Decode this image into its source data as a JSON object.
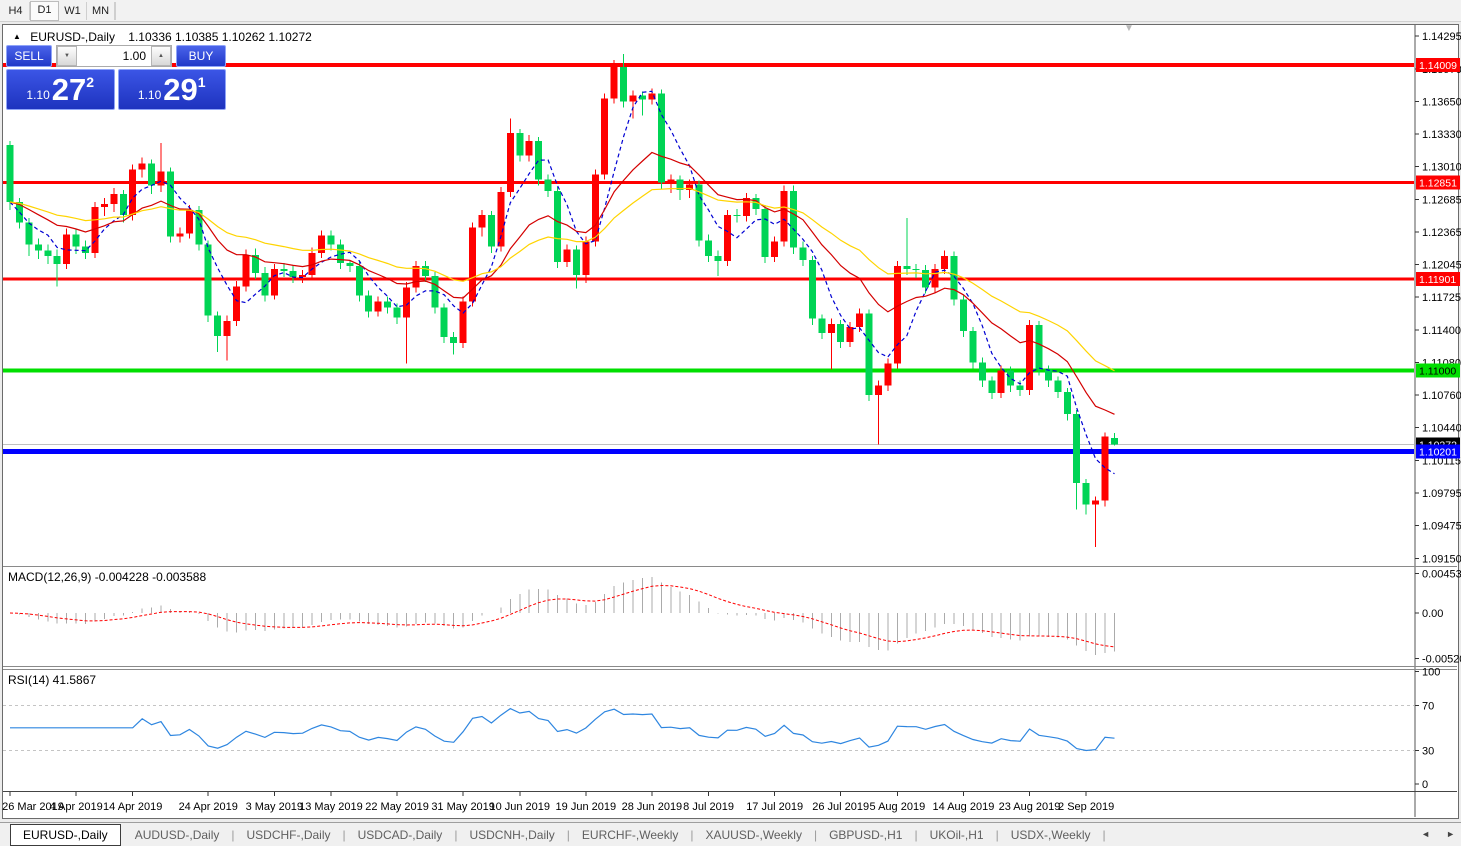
{
  "toolbar": {
    "timeframes": [
      "H4",
      "D1",
      "W1",
      "MN"
    ],
    "active_timeframe": "D1"
  },
  "chart": {
    "marker_icon": "▲",
    "symbol_label": "EURUSD-,Daily",
    "ohlc_text": "1.10336 1.10385 1.10262 1.10272",
    "shift_marker_icon": "▼"
  },
  "trade_panel": {
    "sell_label": "SELL",
    "buy_label": "BUY",
    "volume_value": "1.00",
    "decrease_icon": "▼",
    "increase_icon": "▲",
    "sell_price_small": "1.10",
    "sell_price_big": "27",
    "sell_price_sup": "2",
    "buy_price_small": "1.10",
    "buy_price_big": "29",
    "buy_price_sup": "1"
  },
  "indicator_labels": {
    "macd": "MACD(12,26,9) -0.004228 -0.003588",
    "rsi": "RSI(14) 41.5867"
  },
  "tabs": {
    "items": [
      "EURUSD-,Daily",
      "AUDUSD-,Daily",
      "USDCHF-,Daily",
      "USDCAD-,Daily",
      "USDCNH-,Daily",
      "EURCHF-,Weekly",
      "XAUUSD-,Weekly",
      "GBPUSD-,H1",
      "UKOil-,H1",
      "USDX-,Weekly"
    ],
    "active": "EURUSD-,Daily",
    "scroll_left_icon": "◄",
    "scroll_right_icon": "►"
  },
  "chart_data": {
    "type": "candlestick",
    "symbol": "EURUSD",
    "timeframe": "Daily",
    "current_bar": {
      "open": 1.10336,
      "high": 1.10385,
      "low": 1.10262,
      "close": 1.10272
    },
    "colors": {
      "bull": "#FF0000",
      "bear": "#00D455",
      "ma_fast": "#0000D2",
      "ma_mid": "#D40000",
      "ma_slow": "#FFD400",
      "macd_hist": "#ABABAB",
      "macd_signal": "#FF0000",
      "rsi_line": "#2E86E0",
      "rsi_levels": "#C4C4C4",
      "current_price_line": "#C0C0C0",
      "current_price_badge": "#000000"
    },
    "price_axis_ticks": [
      1.14295,
      1.1397,
      1.1365,
      1.1333,
      1.1301,
      1.12685,
      1.12365,
      1.12045,
      1.11725,
      1.114,
      1.1108,
      1.1076,
      1.1044,
      1.10115,
      1.09795,
      1.09475,
      1.0915
    ],
    "levels": [
      {
        "price": 1.14009,
        "color": "#FF0000",
        "width": 4,
        "badge_text": "#FFFFFF"
      },
      {
        "price": 1.12851,
        "color": "#FF0000",
        "width": 3,
        "badge_text": "#FFFFFF"
      },
      {
        "price": 1.11901,
        "color": "#FF0000",
        "width": 3,
        "badge_text": "#FFFFFF"
      },
      {
        "price": 1.11,
        "color": "#00DF00",
        "width": 4,
        "badge_text": "#000000"
      },
      {
        "price": 1.10201,
        "color": "#0000FF",
        "width": 5,
        "badge_text": "#FFFFFF"
      }
    ],
    "moving_averages": [
      {
        "type": "sma",
        "period": 5,
        "color": "#0000D2",
        "dash": "4,3"
      },
      {
        "type": "ema",
        "period": 15,
        "color": "#D40000",
        "dash": ""
      },
      {
        "type": "ema",
        "period": 30,
        "color": "#FFD400",
        "dash": ""
      }
    ],
    "macd": {
      "fast": 12,
      "slow": 26,
      "signal": 9,
      "value": -0.004228,
      "signal_value": -0.003588,
      "axis": [
        {
          "label": "0.004536",
          "value": 0.004536
        },
        {
          "label": "0.00",
          "value": 0
        },
        {
          "label": "-0.005205",
          "value": -0.005205
        }
      ]
    },
    "rsi": {
      "period": 14,
      "value": 41.5867,
      "levels": [
        70,
        30
      ],
      "axis": [
        {
          "label": "100",
          "value": 100
        },
        {
          "label": "70",
          "value": 70
        },
        {
          "label": "30",
          "value": 30
        },
        {
          "label": "0",
          "value": 0
        }
      ]
    },
    "date_ticks": [
      [
        "26 Mar 2019",
        0
      ],
      [
        "4 Apr 2019",
        7
      ],
      [
        "14 Apr 2019",
        13
      ],
      [
        "24 Apr 2019",
        21
      ],
      [
        "3 May 2019",
        28
      ],
      [
        "13 May 2019",
        34
      ],
      [
        "22 May 2019",
        41
      ],
      [
        "31 May 2019",
        48
      ],
      [
        "10 Jun 2019",
        54
      ],
      [
        "19 Jun 2019",
        61
      ],
      [
        "28 Jun 2019",
        68
      ],
      [
        "8 Jul 2019",
        74
      ],
      [
        "17 Jul 2019",
        81
      ],
      [
        "26 Jul 2019",
        88
      ],
      [
        "5 Aug 2019",
        94
      ],
      [
        "14 Aug 2019",
        101
      ],
      [
        "23 Aug 2019",
        108
      ],
      [
        "2 Sep 2019",
        114
      ]
    ],
    "candles": [
      [
        1.1322,
        1.1326,
        1.1258,
        1.1266
      ],
      [
        1.1266,
        1.127,
        1.124,
        1.1246
      ],
      [
        1.1246,
        1.125,
        1.1213,
        1.1224
      ],
      [
        1.1224,
        1.123,
        1.121,
        1.1218
      ],
      [
        1.1218,
        1.1224,
        1.1205,
        1.1213
      ],
      [
        1.1213,
        1.1219,
        1.1183,
        1.1205
      ],
      [
        1.1205,
        1.124,
        1.12,
        1.1234
      ],
      [
        1.1234,
        1.124,
        1.1215,
        1.1222
      ],
      [
        1.1222,
        1.1228,
        1.121,
        1.1216
      ],
      [
        1.1216,
        1.1266,
        1.1211,
        1.1261
      ],
      [
        1.1261,
        1.127,
        1.1252,
        1.1264
      ],
      [
        1.1264,
        1.128,
        1.1256,
        1.1274
      ],
      [
        1.1274,
        1.1278,
        1.1246,
        1.1253
      ],
      [
        1.1253,
        1.1303,
        1.1248,
        1.1298
      ],
      [
        1.1298,
        1.131,
        1.129,
        1.1304
      ],
      [
        1.1304,
        1.1308,
        1.1274,
        1.1282
      ],
      [
        1.1282,
        1.1324,
        1.1276,
        1.1296
      ],
      [
        1.1296,
        1.13,
        1.1226,
        1.1232
      ],
      [
        1.1232,
        1.1241,
        1.1226,
        1.1235
      ],
      [
        1.1235,
        1.1263,
        1.123,
        1.1258
      ],
      [
        1.1258,
        1.1262,
        1.1218,
        1.1224
      ],
      [
        1.1224,
        1.1228,
        1.1148,
        1.1154
      ],
      [
        1.1154,
        1.1158,
        1.1118,
        1.1134
      ],
      [
        1.1134,
        1.1154,
        1.111,
        1.1149
      ],
      [
        1.1149,
        1.1188,
        1.1144,
        1.1183
      ],
      [
        1.1183,
        1.1219,
        1.1178,
        1.1214
      ],
      [
        1.1214,
        1.122,
        1.119,
        1.1196
      ],
      [
        1.1196,
        1.1202,
        1.1168,
        1.1174
      ],
      [
        1.1174,
        1.1205,
        1.117,
        1.12
      ],
      [
        1.12,
        1.1206,
        1.1192,
        1.1198
      ],
      [
        1.1198,
        1.1204,
        1.1186,
        1.1192
      ],
      [
        1.1192,
        1.1199,
        1.1186,
        1.1194
      ],
      [
        1.1194,
        1.1221,
        1.119,
        1.1216
      ],
      [
        1.1216,
        1.1238,
        1.1211,
        1.1233
      ],
      [
        1.1233,
        1.1238,
        1.1218,
        1.1224
      ],
      [
        1.1224,
        1.1229,
        1.12,
        1.1206
      ],
      [
        1.1206,
        1.1209,
        1.1197,
        1.1203
      ],
      [
        1.1203,
        1.1207,
        1.1168,
        1.1174
      ],
      [
        1.1174,
        1.1179,
        1.1152,
        1.1158
      ],
      [
        1.1158,
        1.1173,
        1.1153,
        1.1168
      ],
      [
        1.1168,
        1.1173,
        1.1156,
        1.1162
      ],
      [
        1.1162,
        1.1166,
        1.1146,
        1.1152
      ],
      [
        1.1152,
        1.1187,
        1.1107,
        1.1182
      ],
      [
        1.1182,
        1.1208,
        1.1177,
        1.1203
      ],
      [
        1.1203,
        1.1208,
        1.1187,
        1.1193
      ],
      [
        1.1193,
        1.1197,
        1.1156,
        1.1162
      ],
      [
        1.1162,
        1.1166,
        1.1127,
        1.1133
      ],
      [
        1.1133,
        1.1138,
        1.1116,
        1.1127
      ],
      [
        1.1127,
        1.1173,
        1.1122,
        1.1168
      ],
      [
        1.1168,
        1.1246,
        1.1163,
        1.1241
      ],
      [
        1.1241,
        1.1258,
        1.1232,
        1.1253
      ],
      [
        1.1253,
        1.1257,
        1.1216,
        1.1222
      ],
      [
        1.1222,
        1.1281,
        1.1217,
        1.1276
      ],
      [
        1.1276,
        1.1348,
        1.1271,
        1.1334
      ],
      [
        1.1334,
        1.1338,
        1.1306,
        1.1312
      ],
      [
        1.1312,
        1.1332,
        1.1306,
        1.1326
      ],
      [
        1.1326,
        1.133,
        1.1282,
        1.1288
      ],
      [
        1.1288,
        1.1293,
        1.1271,
        1.1277
      ],
      [
        1.1277,
        1.1281,
        1.1201,
        1.1207
      ],
      [
        1.1207,
        1.1224,
        1.1202,
        1.1219
      ],
      [
        1.1219,
        1.1223,
        1.1181,
        1.1194
      ],
      [
        1.1194,
        1.1232,
        1.1186,
        1.1227
      ],
      [
        1.1227,
        1.1298,
        1.1222,
        1.1293
      ],
      [
        1.1293,
        1.1373,
        1.1288,
        1.1368
      ],
      [
        1.1368,
        1.1406,
        1.1363,
        1.1399
      ],
      [
        1.1399,
        1.1412,
        1.1359,
        1.1365
      ],
      [
        1.1365,
        1.1376,
        1.1348,
        1.1371
      ],
      [
        1.1371,
        1.1375,
        1.1351,
        1.1367
      ],
      [
        1.1367,
        1.1378,
        1.1362,
        1.1373
      ],
      [
        1.1373,
        1.1377,
        1.1279,
        1.1285
      ],
      [
        1.1285,
        1.1293,
        1.1275,
        1.1288
      ],
      [
        1.1288,
        1.1292,
        1.1268,
        1.1278
      ],
      [
        1.1278,
        1.1288,
        1.127,
        1.1283
      ],
      [
        1.1283,
        1.1287,
        1.1222,
        1.1228
      ],
      [
        1.1228,
        1.1234,
        1.1207,
        1.1213
      ],
      [
        1.1213,
        1.1218,
        1.1193,
        1.1208
      ],
      [
        1.1208,
        1.1258,
        1.1203,
        1.1253
      ],
      [
        1.1253,
        1.1259,
        1.1246,
        1.1252
      ],
      [
        1.1252,
        1.1275,
        1.1247,
        1.127
      ],
      [
        1.127,
        1.1274,
        1.1253,
        1.1259
      ],
      [
        1.1259,
        1.1263,
        1.1206,
        1.1212
      ],
      [
        1.1212,
        1.1232,
        1.1207,
        1.1227
      ],
      [
        1.1227,
        1.1282,
        1.1222,
        1.1277
      ],
      [
        1.1277,
        1.1282,
        1.1215,
        1.1221
      ],
      [
        1.1221,
        1.1227,
        1.1203,
        1.1209
      ],
      [
        1.1209,
        1.1213,
        1.1145,
        1.1151
      ],
      [
        1.1151,
        1.1155,
        1.1131,
        1.1137
      ],
      [
        1.1137,
        1.1151,
        1.1101,
        1.1146
      ],
      [
        1.1146,
        1.115,
        1.1122,
        1.1128
      ],
      [
        1.1128,
        1.1148,
        1.1123,
        1.1143
      ],
      [
        1.1143,
        1.1161,
        1.1138,
        1.1156
      ],
      [
        1.1156,
        1.116,
        1.107,
        1.1076
      ],
      [
        1.1076,
        1.109,
        1.1027,
        1.1085
      ],
      [
        1.1085,
        1.1112,
        1.108,
        1.1107
      ],
      [
        1.1107,
        1.1208,
        1.1102,
        1.1203
      ],
      [
        1.1203,
        1.125,
        1.1194,
        1.12
      ],
      [
        1.12,
        1.1205,
        1.1191,
        1.1199
      ],
      [
        1.1199,
        1.1204,
        1.1176,
        1.1182
      ],
      [
        1.1182,
        1.1205,
        1.1177,
        1.12
      ],
      [
        1.12,
        1.1218,
        1.1195,
        1.1213
      ],
      [
        1.1213,
        1.1217,
        1.1164,
        1.117
      ],
      [
        1.117,
        1.1174,
        1.1133,
        1.1139
      ],
      [
        1.1139,
        1.1143,
        1.1102,
        1.1108
      ],
      [
        1.1108,
        1.1113,
        1.1084,
        1.109
      ],
      [
        1.109,
        1.1094,
        1.1072,
        1.1078
      ],
      [
        1.1078,
        1.1105,
        1.1073,
        1.11
      ],
      [
        1.11,
        1.1104,
        1.1079,
        1.1085
      ],
      [
        1.1085,
        1.109,
        1.1075,
        1.1081
      ],
      [
        1.1081,
        1.115,
        1.1076,
        1.1145
      ],
      [
        1.1145,
        1.1149,
        1.1095,
        1.1101
      ],
      [
        1.1101,
        1.1105,
        1.1084,
        1.109
      ],
      [
        1.109,
        1.1094,
        1.1073,
        1.1079
      ],
      [
        1.1079,
        1.1083,
        1.1051,
        1.1057
      ],
      [
        1.1057,
        1.1061,
        1.0963,
        1.0989
      ],
      [
        1.0989,
        1.0993,
        1.0958,
        1.0968
      ],
      [
        1.0968,
        1.0976,
        1.0926,
        1.0972
      ],
      [
        1.0972,
        1.1039,
        1.0966,
        1.1035
      ],
      [
        1.10336,
        1.10385,
        1.10262,
        1.10272
      ]
    ]
  }
}
